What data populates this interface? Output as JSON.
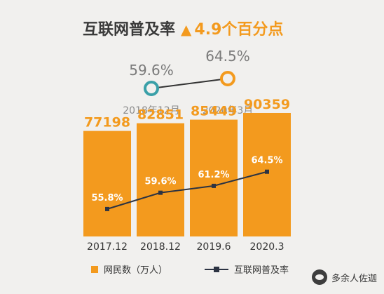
{
  "headline": {
    "text": "互联网普及率",
    "arrow": "▲",
    "delta": "4.9个百分点"
  },
  "top_compare": {
    "from": {
      "value": "59.6%",
      "label": "2018年12月",
      "color": "#3aa0a8"
    },
    "to": {
      "value": "64.5%",
      "label": "2020年3月",
      "color": "#f39a1e"
    }
  },
  "chart_data": {
    "type": "bar",
    "categories": [
      "2017.12",
      "2018.12",
      "2019.6",
      "2020.3"
    ],
    "series": [
      {
        "name": "网民数（万人）",
        "type": "bar",
        "values": [
          77198,
          82851,
          85449,
          90359
        ],
        "color": "#f39a1e"
      },
      {
        "name": "互联网普及率",
        "type": "line",
        "values": [
          55.8,
          59.6,
          61.2,
          64.5
        ],
        "labels": [
          "55.8%",
          "59.6%",
          "61.2%",
          "64.5%"
        ],
        "color": "#2c3342"
      }
    ],
    "bar_labels": [
      "77198",
      "82851",
      "85449",
      "90359"
    ]
  },
  "legend": {
    "bar_label": "网民数（万人）",
    "line_label": "互联网普及率"
  },
  "brand": {
    "name": "多余人佐迦"
  }
}
